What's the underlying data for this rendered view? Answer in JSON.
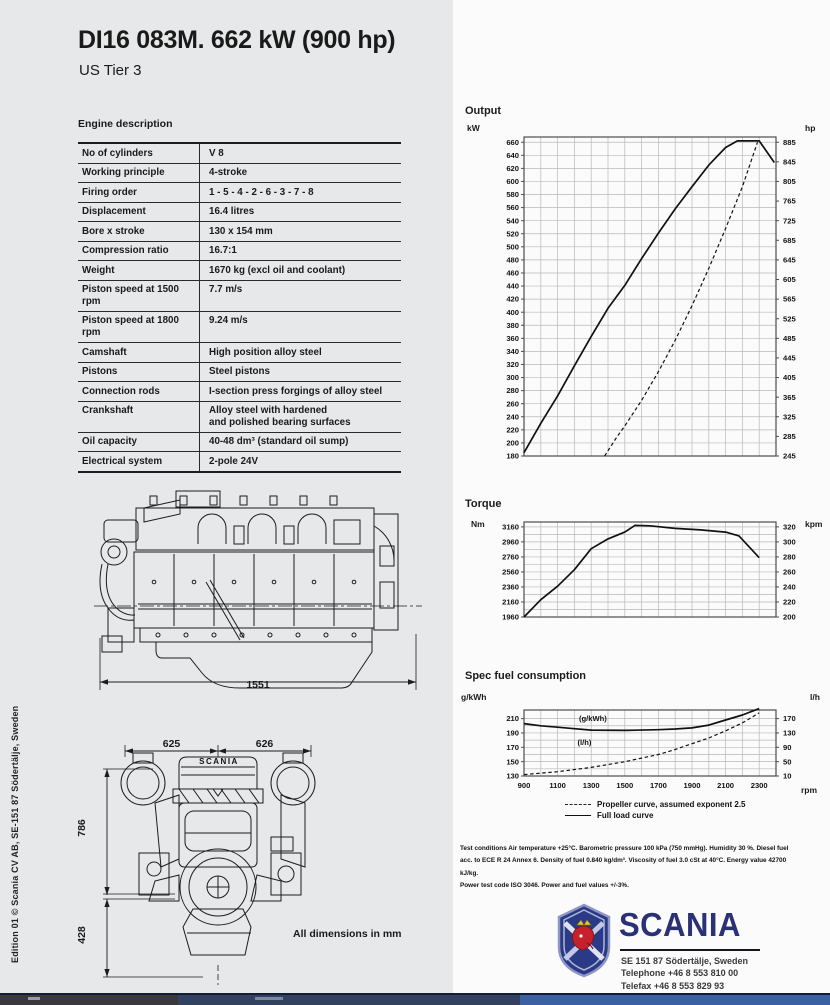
{
  "page": {
    "title": "DI16 083M. 662 kW (900 hp)",
    "subtitle": "US Tier 3"
  },
  "engine_description": {
    "heading": "Engine description",
    "rows": [
      {
        "label": "No of cylinders",
        "value": "V 8"
      },
      {
        "label": "Working principle",
        "value": "4-stroke"
      },
      {
        "label": "Firing order",
        "value": "1 - 5 - 4 - 2 - 6 - 3 - 7 - 8"
      },
      {
        "label": "Displacement",
        "value": "16.4 litres"
      },
      {
        "label": "Bore x stroke",
        "value": "130 x 154 mm"
      },
      {
        "label": "Compression ratio",
        "value": "16.7:1"
      },
      {
        "label": "Weight",
        "value": "1670 kg (excl oil and coolant)"
      },
      {
        "label": "Piston speed at 1500 rpm",
        "value": "7.7 m/s"
      },
      {
        "label": "Piston speed at 1800 rpm",
        "value": "9.24 m/s"
      },
      {
        "label": "Camshaft",
        "value": "High position alloy steel"
      },
      {
        "label": "Pistons",
        "value": "Steel pistons"
      },
      {
        "label": "Connection rods",
        "value": "I-section press forgings of alloy steel"
      },
      {
        "label": "Crankshaft",
        "value": "Alloy steel with hardened\nand polished bearing surfaces"
      },
      {
        "label": "Oil capacity",
        "value": "40-48 dm³  (standard oil sump)"
      },
      {
        "label": "Electrical system",
        "value": "2-pole 24V"
      }
    ]
  },
  "drawings": {
    "side_view_length": "1551",
    "front_width_left": "625",
    "front_width_right": "626",
    "front_height_upper": "786",
    "front_height_lower": "428",
    "engine_brand_text": "SCANIA",
    "note": "All dimensions in mm"
  },
  "edition_note": "Edition 01 © Scania CV AB, SE-151 87  Södertälje, Sweden",
  "chart_data": [
    {
      "id": "output",
      "type": "line",
      "title": "Output",
      "unit_left": "kW",
      "unit_right": "hp",
      "xlim": [
        900,
        2400
      ],
      "x_grid": 100,
      "ylim": [
        180,
        668
      ],
      "y_grid": 20,
      "left_ticks": [
        660,
        640,
        620,
        600,
        580,
        560,
        540,
        520,
        500,
        480,
        460,
        440,
        420,
        400,
        380,
        360,
        340,
        320,
        300,
        280,
        260,
        240,
        220,
        200,
        180
      ],
      "right_ticks": [
        885,
        845,
        805,
        765,
        725,
        685,
        645,
        605,
        565,
        525,
        485,
        445,
        405,
        365,
        325,
        285,
        245
      ],
      "right_anchor": {
        "top_value": 660,
        "bottom_value": 180
      },
      "series": [
        {
          "name": "Full load curve",
          "dash": false,
          "points": [
            [
              900,
              185
            ],
            [
              1000,
              230
            ],
            [
              1100,
              272
            ],
            [
              1200,
              318
            ],
            [
              1300,
              363
            ],
            [
              1400,
              406
            ],
            [
              1500,
              441
            ],
            [
              1600,
              482
            ],
            [
              1700,
              521
            ],
            [
              1800,
              558
            ],
            [
              1900,
              592
            ],
            [
              2000,
              625
            ],
            [
              2100,
              652
            ],
            [
              2170,
              662
            ],
            [
              2300,
              662
            ],
            [
              2390,
              629
            ]
          ]
        },
        {
          "name": "Propeller curve, assumed exponent 2.5",
          "dash": true,
          "points": [
            [
              1380,
              180
            ],
            [
              1450,
              208
            ],
            [
              1500,
              226
            ],
            [
              1600,
              265
            ],
            [
              1700,
              309
            ],
            [
              1800,
              357
            ],
            [
              1900,
              410
            ],
            [
              2000,
              467
            ],
            [
              2100,
              528
            ],
            [
              2200,
              592
            ],
            [
              2290,
              660
            ]
          ]
        }
      ]
    },
    {
      "id": "torque",
      "type": "line",
      "title": "Torque",
      "unit_left": "Nm",
      "unit_right": "kpm",
      "xlim": [
        900,
        2400
      ],
      "x_grid": 100,
      "ylim": [
        1960,
        3225
      ],
      "y_grid": 100,
      "left_ticks": [
        3160,
        2960,
        2760,
        2560,
        2360,
        2160,
        1960
      ],
      "right_ticks": [
        320,
        300,
        280,
        260,
        240,
        220,
        200
      ],
      "right_anchor": {
        "top_value": 3160,
        "bottom_value": 1960
      },
      "series": [
        {
          "name": "Full load torque",
          "dash": false,
          "points": [
            [
              900,
              1960
            ],
            [
              1000,
              2190
            ],
            [
              1100,
              2370
            ],
            [
              1200,
              2590
            ],
            [
              1300,
              2870
            ],
            [
              1400,
              3000
            ],
            [
              1500,
              3090
            ],
            [
              1560,
              3180
            ],
            [
              1650,
              3175
            ],
            [
              1800,
              3140
            ],
            [
              1950,
              3120
            ],
            [
              2100,
              3090
            ],
            [
              2180,
              3040
            ],
            [
              2300,
              2750
            ]
          ]
        }
      ]
    },
    {
      "id": "fuel",
      "type": "line",
      "title": "Spec fuel consumption",
      "unit_left": "g/kWh",
      "unit_right": "l/h",
      "x_unit": "rpm",
      "xlim": [
        900,
        2400
      ],
      "x_grid": 100,
      "x_ticks": [
        900,
        1100,
        1300,
        1500,
        1700,
        1900,
        2100,
        2300
      ],
      "ylim": [
        130,
        222
      ],
      "y_grid": 10,
      "left_ticks": [
        210,
        190,
        170,
        150,
        130
      ],
      "right_ticks": [
        170,
        130,
        90,
        50,
        10
      ],
      "right_anchor": {
        "top_value": 210,
        "bottom_value": 130
      },
      "annotations": [
        {
          "text": "(g/kWh)",
          "x": 1310,
          "y": 207
        },
        {
          "text": "(l/h)",
          "x": 1260,
          "y": 173
        }
      ],
      "series": [
        {
          "name": "Full load curve",
          "dash": false,
          "points": [
            [
              900,
              203
            ],
            [
              1000,
              200
            ],
            [
              1100,
              198
            ],
            [
              1200,
              196
            ],
            [
              1300,
              194
            ],
            [
              1500,
              193.5
            ],
            [
              1700,
              194.5
            ],
            [
              1800,
              195.5
            ],
            [
              1900,
              197
            ],
            [
              2000,
              201
            ],
            [
              2100,
              208
            ],
            [
              2200,
              215
            ],
            [
              2300,
              224
            ]
          ]
        },
        {
          "name": "Propeller curve, assumed exponent 2.5",
          "dash": true,
          "points": [
            [
              900,
              132
            ],
            [
              1100,
              136
            ],
            [
              1300,
              142
            ],
            [
              1500,
              150
            ],
            [
              1700,
              160
            ],
            [
              1800,
              167
            ],
            [
              1900,
              175
            ],
            [
              2000,
              183
            ],
            [
              2100,
              193
            ],
            [
              2200,
              204
            ],
            [
              2300,
              218
            ]
          ]
        }
      ]
    }
  ],
  "legend": {
    "propeller": "Propeller curve, assumed exponent  2.5",
    "full_load": "Full load curve"
  },
  "test_conditions": [
    "Test conditions Air temperature +25°C. Barometric pressure 100 kPa (750 mmHg). Humidity 30 %. Diesel fuel",
    "acc. to ECE R 24 Annex 6. Density of fuel 0.840 kg/dm³. Viscosity of fuel 3.0 cSt at 40°C. Energy value 42700 kJ/kg.",
    "Power test code ISO 3046. Power and fuel values +/-3%."
  ],
  "footer": {
    "brand": "SCANIA",
    "address": "SE 151 87  Södertälje, Sweden",
    "phone": "Telephone +46 8 553 810 00",
    "fax": "Telefax +46 8 553 829 93"
  }
}
